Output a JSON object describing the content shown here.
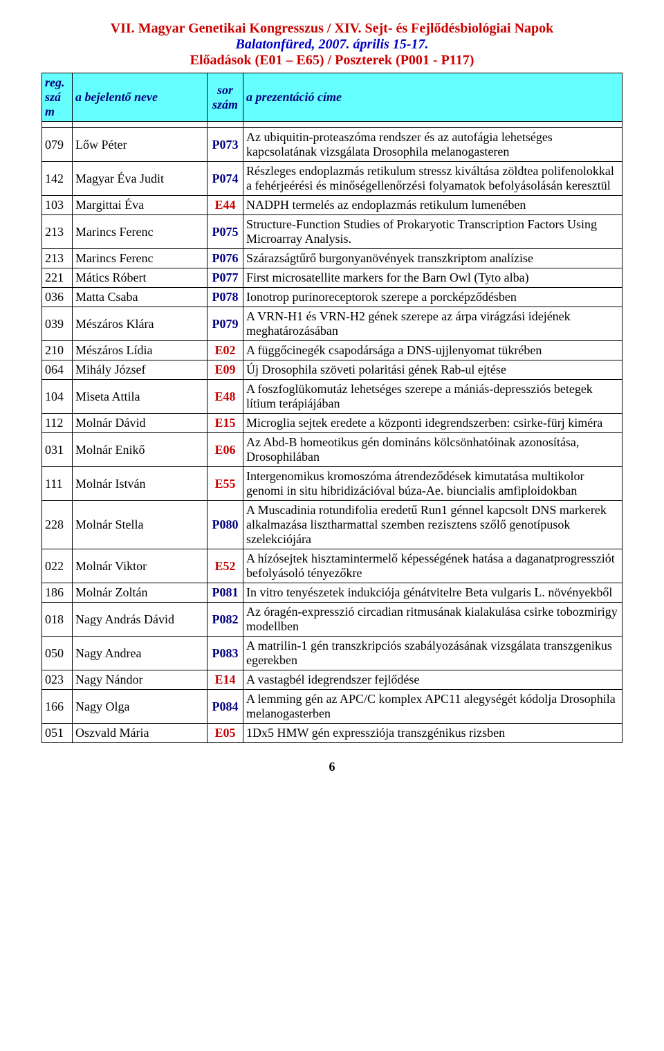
{
  "header": {
    "line1": "VII. Magyar Genetikai Kongresszus / XIV. Sejt- és Fejlődésbiológiai Napok",
    "line2": "Balatonfüred, 2007. április 15-17.",
    "line3": "Előadások (E01 – E65) / Poszterek (P001 - P117)"
  },
  "columns": {
    "reg": "reg. szám",
    "name": "a bejelentő neve",
    "sor": "sor szám",
    "title": "a prezentáció címe"
  },
  "rows": [
    {
      "reg": "079",
      "name": "Lőw Péter",
      "sor": "P073",
      "kind": "P",
      "title": "Az ubiquitin-proteaszóma rendszer és az autofágia lehetséges kapcsolatának vizsgálata Drosophila melanogasteren"
    },
    {
      "reg": "142",
      "name": "Magyar Éva Judit",
      "sor": "P074",
      "kind": "P",
      "title": "Részleges endoplazmás retikulum stressz kiváltása zöldtea polifenolokkal a fehérjeérési és minőségellenőrzési folyamatok befolyásolásán keresztül"
    },
    {
      "reg": "103",
      "name": "Margittai Éva",
      "sor": "E44",
      "kind": "E",
      "title": "NADPH termelés az endoplazmás retikulum lumenében"
    },
    {
      "reg": "213",
      "name": "Marincs Ferenc",
      "sor": "P075",
      "kind": "P",
      "title": "Structure-Function Studies of Prokaryotic Transcription Factors Using Microarray Analysis."
    },
    {
      "reg": "213",
      "name": "Marincs Ferenc",
      "sor": "P076",
      "kind": "P",
      "title": "Szárazságtűrő burgonyanövények transzkriptom analízise"
    },
    {
      "reg": "221",
      "name": "Mátics Róbert",
      "sor": "P077",
      "kind": "P",
      "title": "First microsatellite markers for the Barn Owl (Tyto alba)"
    },
    {
      "reg": "036",
      "name": "Matta Csaba",
      "sor": "P078",
      "kind": "P",
      "title": "Ionotrop purinoreceptorok szerepe a porcképződésben"
    },
    {
      "reg": "039",
      "name": "Mészáros Klára",
      "sor": "P079",
      "kind": "P",
      "title": "A VRN-H1 és VRN-H2 gének szerepe az árpa virágzási idejének meghatározásában"
    },
    {
      "reg": "210",
      "name": "Mészáros Lídia",
      "sor": "E02",
      "kind": "E",
      "title": "A függőcinegék csapodársága a DNS-ujjlenyomat tükrében"
    },
    {
      "reg": "064",
      "name": "Mihály József",
      "sor": "E09",
      "kind": "E",
      "title": "Új Drosophila szöveti polaritási gének Rab-ul ejtése"
    },
    {
      "reg": "104",
      "name": "Miseta Attila",
      "sor": "E48",
      "kind": "E",
      "title": "A foszfoglükomutáz lehetséges szerepe a mániás-depressziós betegek lítium terápiájában"
    },
    {
      "reg": "112",
      "name": "Molnár Dávid",
      "sor": "E15",
      "kind": "E",
      "title": "Microglia sejtek eredete a központi idegrendszerben: csirke-fürj kiméra"
    },
    {
      "reg": "031",
      "name": "Molnár Enikő",
      "sor": "E06",
      "kind": "E",
      "title": "Az Abd-B homeotikus gén domináns kölcsönhatóinak azonosítása, Drosophilában"
    },
    {
      "reg": "111",
      "name": "Molnár István",
      "sor": "E55",
      "kind": "E",
      "title": "Intergenomikus kromoszóma átrendeződések kimutatása multikolor genomi in situ hibridizációval búza-Ae. biuncialis amfiploidokban"
    },
    {
      "reg": "228",
      "name": "Molnár Stella",
      "sor": "P080",
      "kind": "P",
      "title": "A Muscadinia rotundifolia eredetű Run1 génnel kapcsolt DNS markerek alkalmazása lisztharmattal szemben rezisztens szőlő genotípusok szelekciójára"
    },
    {
      "reg": "022",
      "name": "Molnár Viktor",
      "sor": "E52",
      "kind": "E",
      "title": "A hízósejtek hisztamintermelő képességének hatása a daganatprogressziót befolyásoló tényezőkre"
    },
    {
      "reg": "186",
      "name": "Molnár Zoltán",
      "sor": "P081",
      "kind": "P",
      "title": "In vitro tenyészetek indukciója génátvitelre Beta vulgaris L. növényekből"
    },
    {
      "reg": "018",
      "name": "Nagy András Dávid",
      "sor": "P082",
      "kind": "P",
      "title": "Az óragén-expresszió circadian ritmusának kialakulása csirke tobozmirigy modellben"
    },
    {
      "reg": "050",
      "name": "Nagy Andrea",
      "sor": "P083",
      "kind": "P",
      "title": "A matrilin-1 gén transzkripciós szabályozásának vizsgálata transzgenikus egerekben"
    },
    {
      "reg": "023",
      "name": "Nagy Nándor",
      "sor": "E14",
      "kind": "E",
      "title": "A vastagbél idegrendszer fejlődése"
    },
    {
      "reg": "166",
      "name": "Nagy Olga",
      "sor": "P084",
      "kind": "P",
      "title": "A lemming gén az APC/C komplex APC11 alegységét kódolja Drosophila melanogasterben"
    },
    {
      "reg": "051",
      "name": "Oszvald Mária",
      "sor": "E05",
      "kind": "E",
      "title": "1Dx5 HMW gén expressziója transzgénikus rizsben"
    }
  ],
  "page_number": "6",
  "colors": {
    "header_red": "#cc0000",
    "header_blue": "#0000cc",
    "th_bg": "#66ffff",
    "th_text": "#000080",
    "sor_p": "#000080",
    "sor_e": "#cc0000",
    "border": "#000000",
    "background": "#ffffff"
  }
}
